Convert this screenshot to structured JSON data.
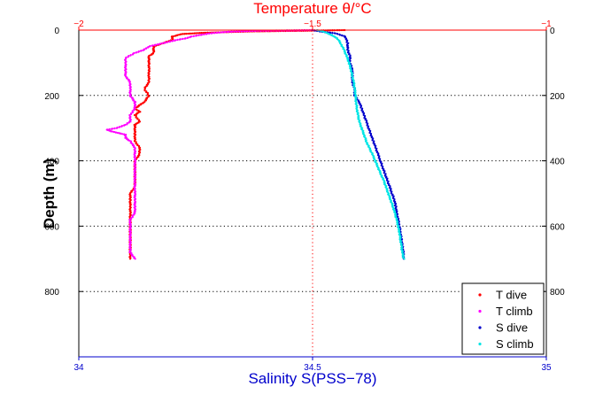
{
  "chart_data": {
    "type": "scatter",
    "title": "Temperature θ/°C",
    "xlabel": "Salinity S(PSS−78)",
    "ylabel": "Depth (m)",
    "ylim": [
      1000,
      0
    ],
    "temperature_axis": {
      "label": "Temperature θ/°C",
      "range": [
        -2,
        -1
      ],
      "ticks": [
        -2,
        -1.5,
        -1
      ],
      "tick_labels": [
        "−2",
        "−1.5",
        "−1"
      ],
      "color": "#ff0000"
    },
    "salinity_axis": {
      "label": "Salinity S(PSS−78)",
      "range": [
        34,
        35
      ],
      "ticks": [
        34,
        34.5,
        35
      ],
      "tick_labels": [
        "34",
        "34.5",
        "35"
      ],
      "color": "#0000cc"
    },
    "depth_axis": {
      "ticks": [
        0,
        200,
        400,
        600,
        800
      ],
      "tick_labels": [
        "0",
        "200",
        "400",
        "600",
        "800"
      ]
    },
    "grid": true,
    "legend_position": "bottom-right",
    "series": [
      {
        "name": "T dive",
        "axis": "temperature",
        "color": "#ff0000",
        "points": [
          [
            -1.43,
            0
          ],
          [
            -1.52,
            2
          ],
          [
            -1.63,
            4
          ],
          [
            -1.73,
            8
          ],
          [
            -1.78,
            12
          ],
          [
            -1.8,
            20
          ],
          [
            -1.8,
            30
          ],
          [
            -1.82,
            40
          ],
          [
            -1.84,
            50
          ],
          [
            -1.84,
            60
          ],
          [
            -1.84,
            70
          ],
          [
            -1.85,
            80
          ],
          [
            -1.85,
            90
          ],
          [
            -1.85,
            100
          ],
          [
            -1.85,
            120
          ],
          [
            -1.85,
            140
          ],
          [
            -1.85,
            160
          ],
          [
            -1.86,
            180
          ],
          [
            -1.85,
            200
          ],
          [
            -1.86,
            220
          ],
          [
            -1.87,
            230
          ],
          [
            -1.88,
            240
          ],
          [
            -1.87,
            250
          ],
          [
            -1.88,
            260
          ],
          [
            -1.87,
            280
          ],
          [
            -1.88,
            290
          ],
          [
            -1.88,
            300
          ],
          [
            -1.88,
            320
          ],
          [
            -1.88,
            340
          ],
          [
            -1.87,
            360
          ],
          [
            -1.87,
            380
          ],
          [
            -1.88,
            400
          ],
          [
            -1.88,
            420
          ],
          [
            -1.88,
            440
          ],
          [
            -1.88,
            460
          ],
          [
            -1.88,
            480
          ],
          [
            -1.89,
            500
          ],
          [
            -1.89,
            520
          ],
          [
            -1.89,
            540
          ],
          [
            -1.89,
            560
          ],
          [
            -1.89,
            580
          ],
          [
            -1.89,
            600
          ],
          [
            -1.89,
            620
          ],
          [
            -1.89,
            640
          ],
          [
            -1.89,
            660
          ],
          [
            -1.89,
            680
          ],
          [
            -1.89,
            700
          ]
        ]
      },
      {
        "name": "T climb",
        "axis": "temperature",
        "color": "#ff00ff",
        "points": [
          [
            -1.88,
            700
          ],
          [
            -1.89,
            680
          ],
          [
            -1.89,
            660
          ],
          [
            -1.89,
            640
          ],
          [
            -1.89,
            620
          ],
          [
            -1.89,
            600
          ],
          [
            -1.89,
            580
          ],
          [
            -1.88,
            560
          ],
          [
            -1.88,
            540
          ],
          [
            -1.88,
            520
          ],
          [
            -1.88,
            500
          ],
          [
            -1.88,
            480
          ],
          [
            -1.88,
            460
          ],
          [
            -1.88,
            440
          ],
          [
            -1.88,
            420
          ],
          [
            -1.88,
            400
          ],
          [
            -1.88,
            380
          ],
          [
            -1.88,
            360
          ],
          [
            -1.89,
            340
          ],
          [
            -1.9,
            330
          ],
          [
            -1.9,
            320
          ],
          [
            -1.93,
            310
          ],
          [
            -1.94,
            305
          ],
          [
            -1.92,
            300
          ],
          [
            -1.9,
            290
          ],
          [
            -1.89,
            280
          ],
          [
            -1.89,
            260
          ],
          [
            -1.88,
            240
          ],
          [
            -1.88,
            220
          ],
          [
            -1.89,
            200
          ],
          [
            -1.89,
            180
          ],
          [
            -1.89,
            160
          ],
          [
            -1.9,
            140
          ],
          [
            -1.9,
            120
          ],
          [
            -1.9,
            100
          ],
          [
            -1.9,
            85
          ],
          [
            -1.88,
            70
          ],
          [
            -1.86,
            60
          ],
          [
            -1.85,
            50
          ],
          [
            -1.82,
            40
          ],
          [
            -1.79,
            30
          ],
          [
            -1.77,
            25
          ],
          [
            -1.76,
            20
          ],
          [
            -1.74,
            15
          ],
          [
            -1.72,
            10
          ],
          [
            -1.68,
            5
          ],
          [
            -1.62,
            2
          ],
          [
            -1.55,
            1
          ],
          [
            -1.5,
            0
          ]
        ]
      },
      {
        "name": "S dive",
        "axis": "salinity",
        "color": "#0000cc",
        "points": [
          [
            34.5,
            0
          ],
          [
            34.52,
            5
          ],
          [
            34.55,
            10
          ],
          [
            34.57,
            20
          ],
          [
            34.575,
            40
          ],
          [
            34.575,
            60
          ],
          [
            34.58,
            80
          ],
          [
            34.58,
            100
          ],
          [
            34.585,
            120
          ],
          [
            34.585,
            140
          ],
          [
            34.585,
            160
          ],
          [
            34.59,
            180
          ],
          [
            34.59,
            200
          ],
          [
            34.6,
            220
          ],
          [
            34.605,
            240
          ],
          [
            34.61,
            260
          ],
          [
            34.615,
            280
          ],
          [
            34.62,
            300
          ],
          [
            34.625,
            320
          ],
          [
            34.63,
            340
          ],
          [
            34.635,
            360
          ],
          [
            34.64,
            380
          ],
          [
            34.645,
            400
          ],
          [
            34.65,
            420
          ],
          [
            34.655,
            440
          ],
          [
            34.66,
            460
          ],
          [
            34.665,
            480
          ],
          [
            34.67,
            500
          ],
          [
            34.675,
            520
          ],
          [
            34.678,
            540
          ],
          [
            34.68,
            560
          ],
          [
            34.683,
            580
          ],
          [
            34.686,
            600
          ],
          [
            34.688,
            620
          ],
          [
            34.69,
            640
          ],
          [
            34.692,
            660
          ],
          [
            34.694,
            680
          ],
          [
            34.695,
            700
          ]
        ]
      },
      {
        "name": "S climb",
        "axis": "salinity",
        "color": "#00e5e5",
        "points": [
          [
            34.695,
            700
          ],
          [
            34.692,
            680
          ],
          [
            34.69,
            660
          ],
          [
            34.688,
            640
          ],
          [
            34.686,
            620
          ],
          [
            34.683,
            600
          ],
          [
            34.68,
            580
          ],
          [
            34.676,
            560
          ],
          [
            34.672,
            540
          ],
          [
            34.667,
            520
          ],
          [
            34.662,
            500
          ],
          [
            34.657,
            480
          ],
          [
            34.652,
            460
          ],
          [
            34.646,
            440
          ],
          [
            34.64,
            420
          ],
          [
            34.634,
            400
          ],
          [
            34.628,
            380
          ],
          [
            34.621,
            360
          ],
          [
            34.615,
            340
          ],
          [
            34.61,
            320
          ],
          [
            34.605,
            300
          ],
          [
            34.6,
            280
          ],
          [
            34.597,
            260
          ],
          [
            34.595,
            240
          ],
          [
            34.593,
            220
          ],
          [
            34.592,
            200
          ],
          [
            34.59,
            180
          ],
          [
            34.588,
            160
          ],
          [
            34.585,
            140
          ],
          [
            34.582,
            120
          ],
          [
            34.578,
            100
          ],
          [
            34.573,
            80
          ],
          [
            34.567,
            60
          ],
          [
            34.56,
            40
          ],
          [
            34.553,
            25
          ],
          [
            34.54,
            15
          ],
          [
            34.53,
            8
          ],
          [
            34.52,
            3
          ],
          [
            34.51,
            0
          ]
        ]
      }
    ]
  }
}
